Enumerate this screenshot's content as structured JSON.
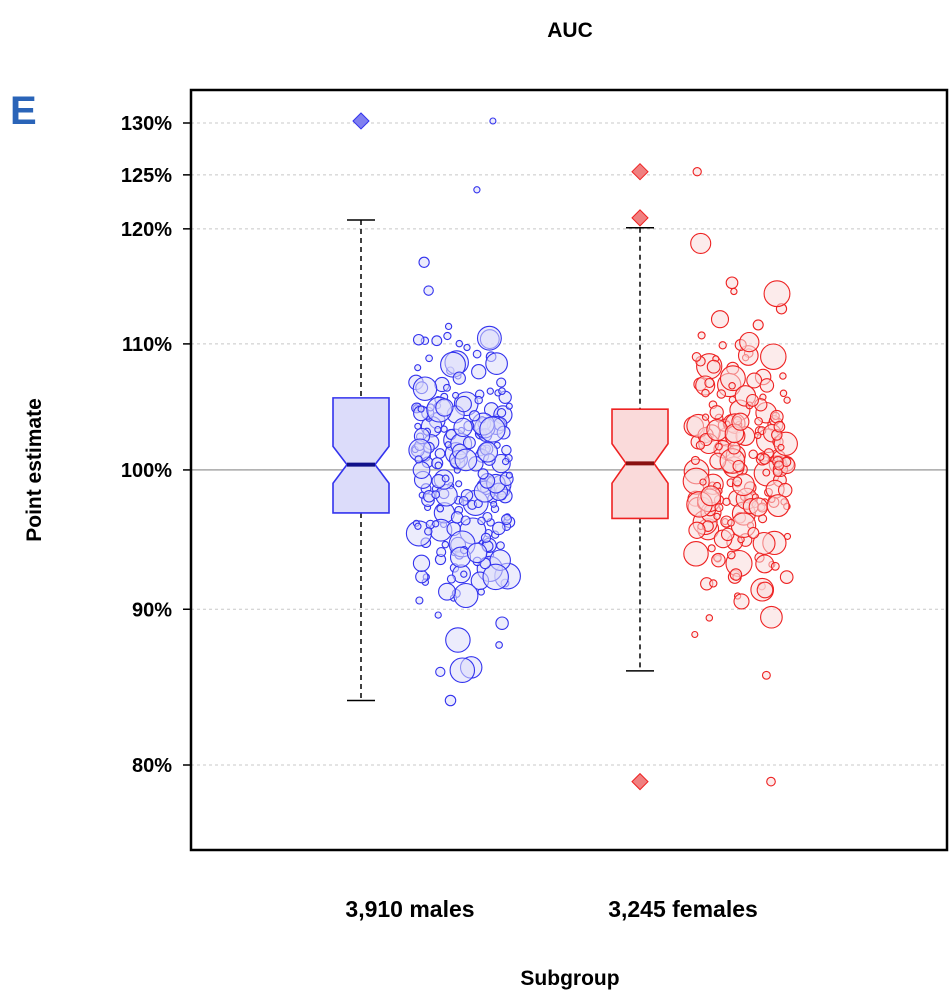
{
  "chart_data": {
    "type": "boxplot-with-jitter",
    "panel_label": "E",
    "title": "AUC",
    "xlabel": "Subgroup",
    "ylabel": "Point  estimate",
    "y_scale": "log",
    "ylim": [
      75,
      134
    ],
    "y_ticks": [
      80,
      90,
      100,
      110,
      120,
      125,
      130
    ],
    "y_tick_labels": [
      "80%",
      "90%",
      "100%",
      "110%",
      "120%",
      "125%",
      "130%"
    ],
    "reference_line": 100,
    "grid": "horizontal-dotted",
    "categories": [
      "3,910 males",
      "3,245 females"
    ],
    "series": [
      {
        "category": "3,910 males",
        "color": "#3333ee",
        "fill": "#dcdcfa",
        "box": {
          "lower_whisker": 84.0,
          "q1": 96.8,
          "median": 100.4,
          "q3": 105.6,
          "upper_whisker": 120.8,
          "notch_low": 99.0,
          "notch_high": 101.8
        },
        "outliers": [
          130.2
        ],
        "jitter_range": [
          77,
          134
        ],
        "n_points": 230,
        "range": [
          84.0,
          130.2
        ]
      },
      {
        "category": "3,245 females",
        "color": "#ee2222",
        "fill": "#fadada",
        "box": {
          "lower_whisker": 85.9,
          "q1": 96.4,
          "median": 100.5,
          "q3": 104.7,
          "upper_whisker": 120.1,
          "notch_low": 99.0,
          "notch_high": 102.0
        },
        "outliers": [
          125.3,
          121.0,
          79.0
        ],
        "n_points": 210,
        "range": [
          79.0,
          125.3
        ]
      }
    ]
  }
}
